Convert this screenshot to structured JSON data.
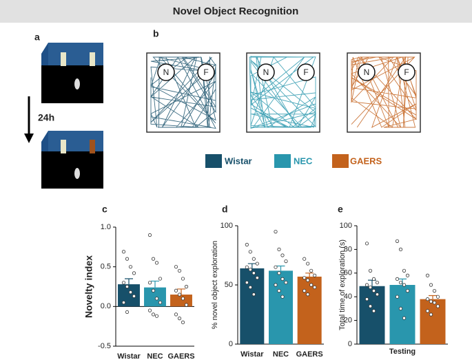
{
  "header": {
    "title": "Novel Object Recognition"
  },
  "panel_letters": [
    "a",
    "b",
    "c",
    "d",
    "e"
  ],
  "delay_label": "24h",
  "object_labels": [
    "N",
    "F"
  ],
  "legend": [
    {
      "name": "Wistar",
      "color": "#17506a"
    },
    {
      "name": "NEC",
      "color": "#2996ad"
    },
    {
      "name": "GAERS",
      "color": "#c3621c"
    }
  ],
  "chart_data": [
    {
      "type": "bar",
      "ylabel": "Novelty index",
      "categories": [
        "Wistar",
        "NEC",
        "GAERS"
      ],
      "values": [
        0.28,
        0.24,
        0.15
      ],
      "errors": [
        0.07,
        0.08,
        0.07
      ],
      "points": [
        [
          0.69,
          0.6,
          0.5,
          0.42,
          0.3,
          0.25,
          0.18,
          0.13,
          0.05,
          -0.07
        ],
        [
          0.9,
          0.6,
          0.55,
          0.35,
          0.3,
          0.2,
          0.1,
          0.05,
          -0.05,
          -0.1,
          -0.12
        ],
        [
          0.5,
          0.45,
          0.35,
          0.25,
          0.2,
          0.15,
          0.1,
          0.02,
          -0.1,
          -0.15,
          -0.2
        ]
      ],
      "ylim": [
        -0.5,
        1.0
      ],
      "yticks": [
        -0.5,
        {
          "value": 0,
          "label": "0.0"
        },
        0.5,
        {
          "value": 1,
          "label": "1.0"
        }
      ]
    },
    {
      "type": "bar",
      "ylabel": "% novel object exploration",
      "categories": [
        "Wistar",
        "NEC",
        "GAERS"
      ],
      "values": [
        64,
        62,
        57
      ],
      "errors": [
        4,
        4,
        3
      ],
      "points": [
        [
          84,
          78,
          72,
          68,
          65,
          63,
          60,
          56,
          52,
          48,
          42
        ],
        [
          95,
          80,
          75,
          70,
          65,
          60,
          55,
          52,
          50,
          45,
          40
        ],
        [
          72,
          68,
          62,
          58,
          56,
          54,
          50,
          48,
          45,
          42
        ]
      ],
      "ylim": [
        0,
        100
      ],
      "yticks": [
        0,
        50,
        100
      ]
    },
    {
      "type": "bar",
      "ylabel": "Total time of exploration (s)",
      "xlabel": "Testing",
      "categories": [
        null,
        null,
        null
      ],
      "values": [
        49,
        50,
        38
      ],
      "errors": [
        5,
        5,
        3
      ],
      "points": [
        [
          85,
          62,
          55,
          52,
          50,
          48,
          45,
          42,
          38,
          32,
          28
        ],
        [
          87,
          80,
          62,
          58,
          55,
          52,
          50,
          45,
          40,
          30,
          22
        ],
        [
          58,
          50,
          45,
          40,
          38,
          36,
          35,
          32,
          28,
          25
        ]
      ],
      "ylim": [
        0,
        100
      ],
      "yticks": [
        0,
        20,
        40,
        60,
        80,
        100
      ]
    }
  ]
}
